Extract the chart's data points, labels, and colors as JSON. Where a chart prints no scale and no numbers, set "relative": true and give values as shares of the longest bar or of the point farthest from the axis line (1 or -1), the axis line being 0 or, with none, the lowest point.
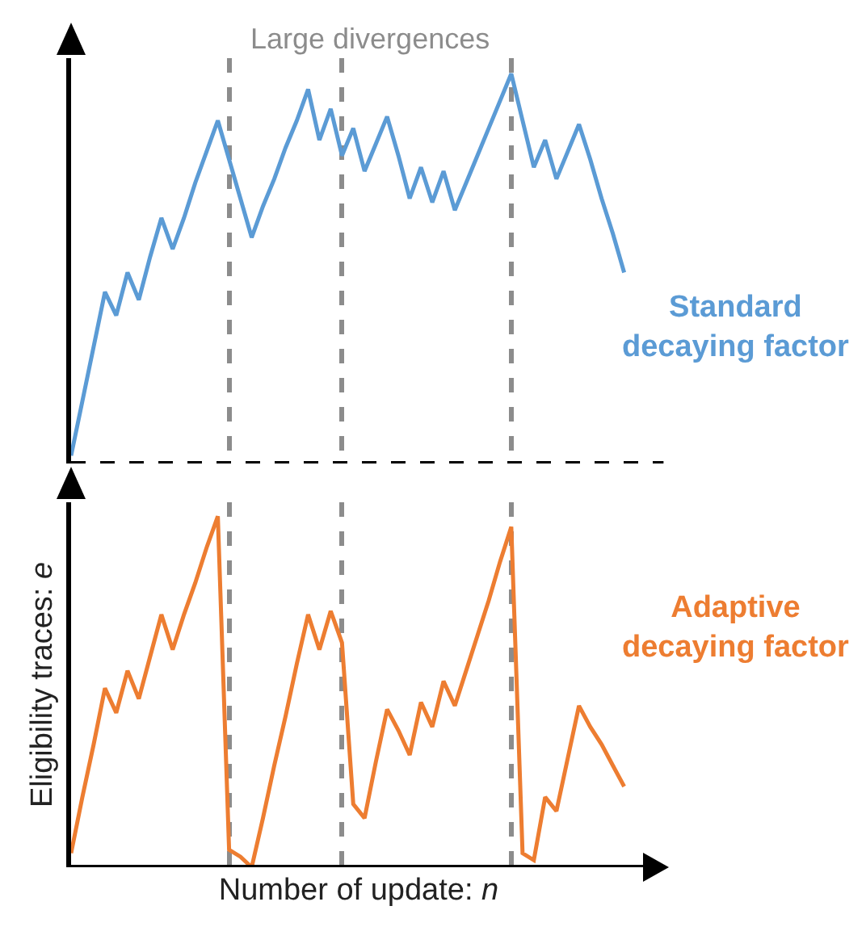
{
  "chart_data": [
    {
      "type": "line",
      "relative": true,
      "annotations": [
        "Large divergences"
      ],
      "grid": "x",
      "categories": [
        null,
        null,
        null,
        null,
        null,
        null,
        null,
        null,
        null,
        null,
        null,
        null,
        null,
        null,
        null,
        null,
        null,
        null,
        null,
        null,
        null,
        null,
        null,
        null,
        null,
        null,
        null,
        null,
        null,
        null,
        null,
        null,
        null,
        null,
        null,
        null,
        null,
        null,
        null,
        null,
        null,
        null,
        null,
        null,
        null,
        null,
        null,
        null,
        null,
        null
      ],
      "series": [
        {
          "name": "Standard decaying factor",
          "color": "#5b9bd5",
          "values": [
            0.02,
            0.16,
            0.3,
            0.44,
            0.38,
            0.49,
            0.42,
            0.53,
            0.63,
            0.55,
            0.63,
            0.72,
            0.8,
            0.88,
            0.78,
            0.68,
            0.58,
            0.66,
            0.73,
            0.81,
            0.88,
            0.96,
            0.83,
            0.91,
            0.79,
            0.86,
            0.75,
            0.82,
            0.89,
            0.79,
            0.68,
            0.76,
            0.67,
            0.75,
            0.65,
            0.72,
            0.79,
            0.86,
            0.93,
            1,
            0.88,
            0.76,
            0.83,
            0.73,
            0.8,
            0.87,
            0.78,
            0.68,
            0.59,
            0.49
          ]
        }
      ]
    },
    {
      "type": "line",
      "relative": true,
      "xlabel": "Number of update: n",
      "ylabel": "Eligibility traces: e",
      "grid": "x",
      "categories": [
        null,
        null,
        null,
        null,
        null,
        null,
        null,
        null,
        null,
        null,
        null,
        null,
        null,
        null,
        null,
        null,
        null,
        null,
        null,
        null,
        null,
        null,
        null,
        null,
        null,
        null,
        null,
        null,
        null,
        null,
        null,
        null,
        null,
        null,
        null,
        null,
        null,
        null,
        null,
        null,
        null,
        null,
        null,
        null,
        null,
        null,
        null,
        null,
        null,
        null
      ],
      "series": [
        {
          "name": "Adaptive decaying factor",
          "color": "#ed7d31",
          "values": [
            0.04,
            0.2,
            0.35,
            0.51,
            0.44,
            0.56,
            0.48,
            0.6,
            0.72,
            0.62,
            0.72,
            0.81,
            0.91,
            1,
            0.05,
            0.03,
            0,
            0.14,
            0.29,
            0.43,
            0.58,
            0.72,
            0.62,
            0.73,
            0.64,
            0.18,
            0.14,
            0.3,
            0.45,
            0.39,
            0.32,
            0.47,
            0.4,
            0.53,
            0.46,
            0.56,
            0.66,
            0.76,
            0.87,
            0.97,
            0.04,
            0.02,
            0.2,
            0.16,
            0.31,
            0.46,
            0.4,
            0.35,
            0.29,
            0.23
          ]
        }
      ]
    }
  ]
}
